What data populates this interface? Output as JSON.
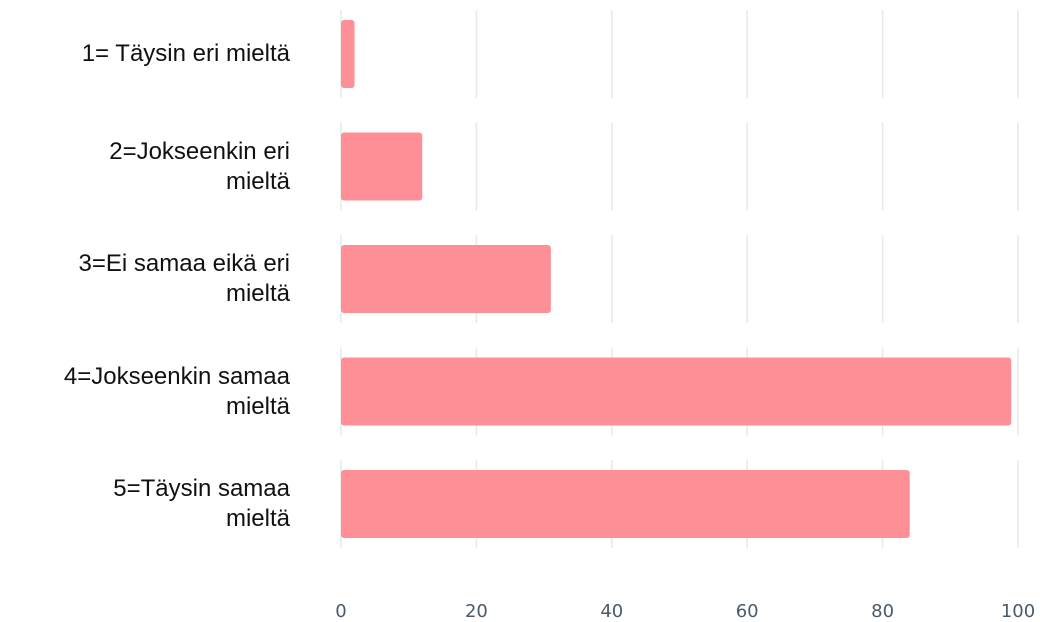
{
  "chart_data": {
    "type": "bar",
    "orientation": "horizontal",
    "categories": [
      "1= Täysin eri mieltä",
      "2=Jokseenkin eri mieltä",
      "3=Ei samaa eikä eri mieltä",
      "4=Jokseenkin samaa mieltä",
      "5=Täysin samaa mieltä"
    ],
    "category_lines": [
      [
        "1= Täysin eri mieltä"
      ],
      [
        "2=Jokseenkin eri",
        "mieltä"
      ],
      [
        "3=Ei samaa eikä eri",
        "mieltä"
      ],
      [
        "4=Jokseenkin samaa",
        "mieltä"
      ],
      [
        "5=Täysin samaa",
        "mieltä"
      ]
    ],
    "values": [
      2,
      12,
      31,
      99,
      84
    ],
    "xlim": [
      0,
      100
    ],
    "xticks": [
      "0",
      "20",
      "40",
      "60",
      "80",
      "100"
    ],
    "title": "",
    "xlabel": "",
    "ylabel": "",
    "grid": true,
    "bar_color": "#ff8f96",
    "grid_color": "#e8e8e8",
    "tick_color": "#4a5b6b"
  }
}
